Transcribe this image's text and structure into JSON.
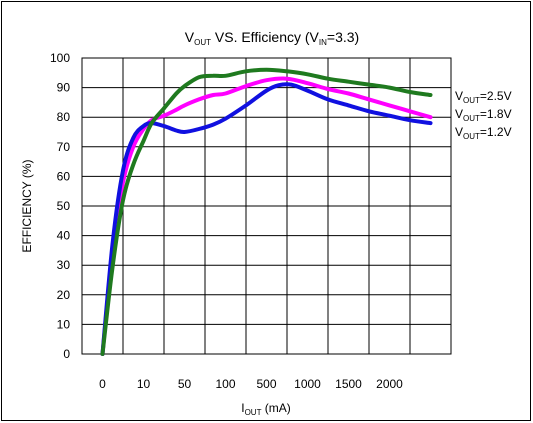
{
  "chart_data": {
    "type": "line",
    "title": {
      "main": "V",
      "main_sub": "OUT",
      "mid": " VS. Efficiency (V",
      "mid_sub": "IN",
      "end": "=3.3)"
    },
    "xlabel": {
      "main": "I",
      "sub": "OUT",
      "end": " (mA)"
    },
    "ylabel": "EFFICIENCY (%)",
    "categories": [
      "0",
      "10",
      "50",
      "100",
      "500",
      "1000",
      "1500",
      "2000"
    ],
    "ylim": [
      0,
      100
    ],
    "yticks": [
      "0",
      "10",
      "20",
      "30",
      "40",
      "50",
      "60",
      "70",
      "80",
      "90",
      "100"
    ],
    "grid": true,
    "legend_placement": "right",
    "series": [
      {
        "name": "V_OUT=2.5V",
        "legend": {
          "main": "V",
          "sub": "OUT",
          "end": "=2.5V"
        },
        "color": "#1f7a1f",
        "x": [
          0,
          0.25,
          0.5,
          0.75,
          1.0,
          1.2,
          1.5,
          1.8,
          2.0,
          2.35,
          2.7,
          3.0,
          3.5,
          4.0,
          4.5,
          5.0,
          5.5,
          6.0,
          6.5,
          7.0,
          7.5,
          8.0
        ],
        "y": [
          0,
          30,
          52,
          64,
          72,
          78,
          83,
          88,
          90.5,
          93.5,
          94,
          94,
          95.5,
          96,
          95.5,
          94.5,
          93,
          92,
          91,
          90,
          88.5,
          87.5
        ]
      },
      {
        "name": "V_OUT=1.8V",
        "legend": {
          "main": "V",
          "sub": "OUT",
          "end": "=1.8V"
        },
        "color": "#ff00ff",
        "x": [
          0,
          0.25,
          0.5,
          0.75,
          1.0,
          1.2,
          1.5,
          1.8,
          2.0,
          2.35,
          2.7,
          3.0,
          3.5,
          4.0,
          4.5,
          5.0,
          5.5,
          6.0,
          6.5,
          7.0,
          7.5,
          8.0
        ],
        "y": [
          0,
          35,
          58,
          70,
          76,
          79,
          80.5,
          82.5,
          84,
          86,
          87.5,
          88,
          90.5,
          92.5,
          93,
          91.5,
          89.5,
          88,
          86,
          84,
          82,
          80
        ]
      },
      {
        "name": "V_OUT=1.2V",
        "legend": {
          "main": "V",
          "sub": "OUT",
          "end": "=1.2V"
        },
        "color": "#1010e0",
        "x": [
          0,
          0.25,
          0.5,
          0.75,
          1.0,
          1.2,
          1.5,
          1.8,
          2.0,
          2.35,
          2.7,
          3.0,
          3.5,
          4.0,
          4.3,
          4.6,
          5.0,
          5.5,
          6.0,
          6.5,
          7.0,
          7.5,
          8.0
        ],
        "y": [
          0,
          38,
          62,
          73,
          77,
          78,
          77,
          75.5,
          75,
          76,
          77.5,
          79.5,
          84,
          89,
          90.8,
          91,
          89,
          86,
          84,
          82,
          80.5,
          79,
          78
        ]
      }
    ]
  }
}
